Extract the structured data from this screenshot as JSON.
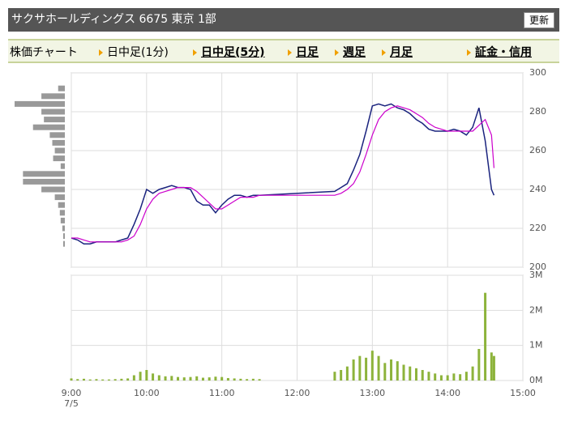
{
  "header": {
    "title": "サクサホールディングス 6675 東京 1部",
    "button": "更新"
  },
  "tabs": [
    "株価チャート",
    "日中足(1分)",
    "日中足(5分)",
    "日足",
    "週足",
    "月足",
    "証金・信用"
  ],
  "chart_data": [
    {
      "type": "line",
      "ylim": [
        200,
        300
      ],
      "yticks": [
        200,
        220,
        240,
        260,
        280,
        300
      ],
      "grid": true,
      "x": [
        "9:00",
        "9:05",
        "9:10",
        "9:15",
        "9:20",
        "9:25",
        "9:30",
        "9:35",
        "9:40",
        "9:45",
        "9:50",
        "9:55",
        "10:00",
        "10:05",
        "10:10",
        "10:15",
        "10:20",
        "10:25",
        "10:30",
        "10:35",
        "10:40",
        "10:45",
        "10:50",
        "10:55",
        "11:00",
        "11:05",
        "11:10",
        "11:15",
        "11:20",
        "11:25",
        "11:30",
        "12:30",
        "12:35",
        "12:40",
        "12:45",
        "12:50",
        "12:55",
        "13:00",
        "13:05",
        "13:10",
        "13:15",
        "13:20",
        "13:25",
        "13:30",
        "13:35",
        "13:40",
        "13:45",
        "13:50",
        "13:55",
        "14:00",
        "14:05",
        "14:10",
        "14:15",
        "14:20",
        "14:25",
        "14:30",
        "14:35",
        "14:37"
      ],
      "series": [
        {
          "color": "#1a237e",
          "values": [
            215,
            214,
            212,
            212,
            213,
            213,
            213,
            213,
            214,
            215,
            222,
            230,
            240,
            238,
            240,
            241,
            242,
            241,
            241,
            240,
            234,
            232,
            232,
            228,
            232,
            235,
            237,
            237,
            236,
            237,
            237,
            239,
            241,
            243,
            250,
            258,
            270,
            283,
            284,
            283,
            284,
            282,
            281,
            279,
            276,
            274,
            271,
            270,
            270,
            270,
            271,
            270,
            268,
            272,
            282,
            265,
            240,
            237
          ]
        },
        {
          "color": "#cc00cc",
          "values": [
            215,
            215,
            214,
            213,
            213,
            213,
            213,
            213,
            213,
            214,
            216,
            222,
            230,
            235,
            238,
            239,
            240,
            241,
            241,
            241,
            239,
            236,
            233,
            230,
            230,
            232,
            234,
            236,
            236,
            236,
            237,
            237,
            238,
            240,
            243,
            249,
            258,
            268,
            276,
            280,
            282,
            283,
            282,
            281,
            279,
            277,
            274,
            272,
            271,
            270,
            270,
            270,
            270,
            270,
            273,
            276,
            268,
            251
          ]
        }
      ]
    },
    {
      "type": "bar",
      "color": "#8db33b",
      "ylim": [
        0,
        3000000
      ],
      "yticks": [
        {
          "value": 0,
          "label": "0M"
        },
        {
          "value": 1000000,
          "label": "1M"
        },
        {
          "value": 2000000,
          "label": "2M"
        },
        {
          "value": 3000000,
          "label": "3M"
        }
      ],
      "xlim": [
        "9:00",
        "15:00"
      ],
      "xticks": [
        "9:00",
        "10:00",
        "11:00",
        "12:00",
        "13:00",
        "14:00",
        "15:00"
      ],
      "date_label": "7/5",
      "x": [
        "9:00",
        "9:05",
        "9:10",
        "9:15",
        "9:20",
        "9:25",
        "9:30",
        "9:35",
        "9:40",
        "9:45",
        "9:50",
        "9:55",
        "10:00",
        "10:05",
        "10:10",
        "10:15",
        "10:20",
        "10:25",
        "10:30",
        "10:35",
        "10:40",
        "10:45",
        "10:50",
        "10:55",
        "11:00",
        "11:05",
        "11:10",
        "11:15",
        "11:20",
        "11:25",
        "11:30",
        "12:30",
        "12:35",
        "12:40",
        "12:45",
        "12:50",
        "12:55",
        "13:00",
        "13:05",
        "13:10",
        "13:15",
        "13:20",
        "13:25",
        "13:30",
        "13:35",
        "13:40",
        "13:45",
        "13:50",
        "13:55",
        "14:00",
        "14:05",
        "14:10",
        "14:15",
        "14:20",
        "14:25",
        "14:30",
        "14:35",
        "14:37"
      ],
      "values": [
        60000,
        40000,
        50000,
        30000,
        40000,
        30000,
        30000,
        40000,
        50000,
        60000,
        150000,
        250000,
        300000,
        200000,
        150000,
        120000,
        130000,
        100000,
        90000,
        100000,
        120000,
        80000,
        90000,
        110000,
        100000,
        70000,
        60000,
        50000,
        40000,
        50000,
        40000,
        250000,
        300000,
        400000,
        600000,
        700000,
        650000,
        850000,
        700000,
        500000,
        600000,
        550000,
        450000,
        400000,
        350000,
        300000,
        250000,
        200000,
        150000,
        150000,
        200000,
        180000,
        250000,
        400000,
        900000,
        2500000,
        800000,
        700000
      ]
    },
    {
      "type": "barh",
      "color": "#999999",
      "categories": [
        292,
        288,
        284,
        280,
        276,
        272,
        268,
        264,
        260,
        256,
        252,
        248,
        244,
        240,
        236,
        232,
        228,
        224,
        220,
        216,
        212
      ],
      "values": [
        8,
        28,
        60,
        28,
        25,
        38,
        18,
        15,
        12,
        14,
        5,
        50,
        50,
        28,
        12,
        8,
        6,
        5,
        3,
        2,
        2
      ]
    }
  ]
}
